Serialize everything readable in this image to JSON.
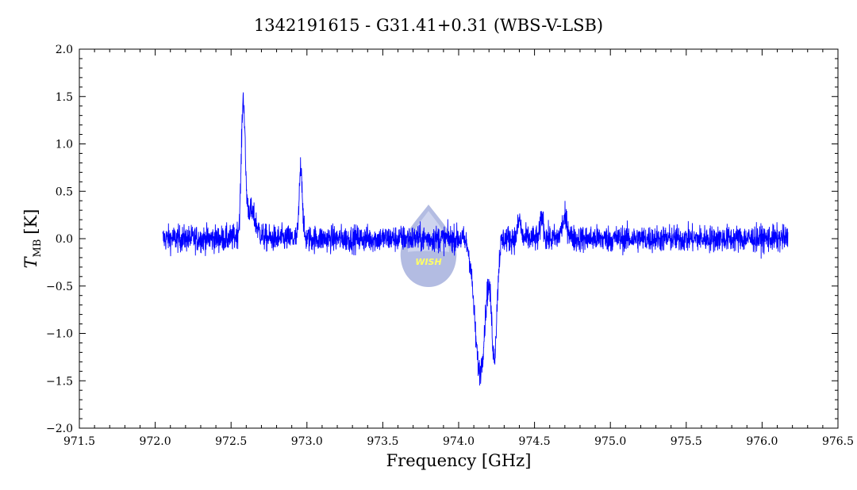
{
  "chart_data": {
    "type": "line",
    "title": "1342191615 - G31.41+0.31 (WBS-V-LSB)",
    "xlabel": "Frequency [GHz]",
    "ylabel_main": "T",
    "ylabel_sub": "MB",
    "ylabel_unit": "[K]",
    "xlim": [
      971.5,
      976.5
    ],
    "ylim": [
      -2.0,
      2.0
    ],
    "xticks": [
      "971.5",
      "972.0",
      "972.5",
      "973.0",
      "973.5",
      "974.0",
      "974.5",
      "975.0",
      "975.5",
      "976.0",
      "976.5"
    ],
    "yticks": [
      "2.0",
      "1.5",
      "1.0",
      "0.5",
      "0.0",
      "−0.5",
      "−1.0",
      "−1.5",
      "−2.0"
    ],
    "grid": false,
    "series": [
      {
        "color": "#0000ff",
        "x_start": 972.05,
        "x_end": 976.17,
        "noise_rms": 0.07,
        "features": [
          {
            "center": 972.58,
            "amplitude": 1.3,
            "sigma": 0.012
          },
          {
            "center": 972.62,
            "amplitude": 0.3,
            "sigma": 0.04
          },
          {
            "center": 972.96,
            "amplitude": 0.78,
            "sigma": 0.01
          },
          {
            "center": 974.14,
            "amplitude": -1.4,
            "sigma": 0.035
          },
          {
            "center": 974.235,
            "amplitude": -1.2,
            "sigma": 0.018
          },
          {
            "center": 974.4,
            "amplitude": 0.2,
            "sigma": 0.01
          },
          {
            "center": 974.55,
            "amplitude": 0.25,
            "sigma": 0.01
          },
          {
            "center": 974.7,
            "amplitude": 0.2,
            "sigma": 0.02
          }
        ]
      }
    ]
  },
  "watermark": {
    "text": "WISH"
  }
}
